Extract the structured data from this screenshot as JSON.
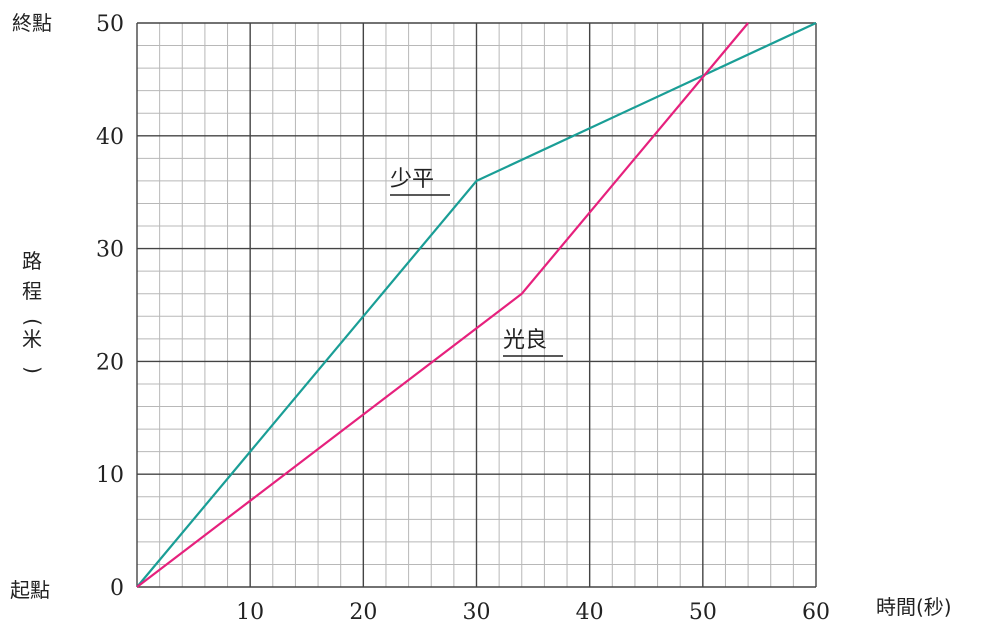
{
  "chart_data": {
    "type": "line",
    "xlabel": "時間(秒)",
    "ylabel": "路程(米)",
    "y_top_label": "終點",
    "y_bottom_label": "起點",
    "xlim": [
      0,
      60
    ],
    "ylim": [
      0,
      50
    ],
    "x_ticks": [
      10,
      20,
      30,
      40,
      50,
      60
    ],
    "y_ticks": [
      0,
      10,
      20,
      30,
      40,
      50
    ],
    "grid": true,
    "series": [
      {
        "name": "少平",
        "color": "#1a9e96",
        "points": [
          [
            0,
            0
          ],
          [
            30,
            36
          ],
          [
            60,
            50
          ]
        ]
      },
      {
        "name": "光良",
        "color": "#e6217d",
        "points": [
          [
            0,
            0
          ],
          [
            34,
            26
          ],
          [
            54,
            50
          ]
        ]
      }
    ]
  }
}
